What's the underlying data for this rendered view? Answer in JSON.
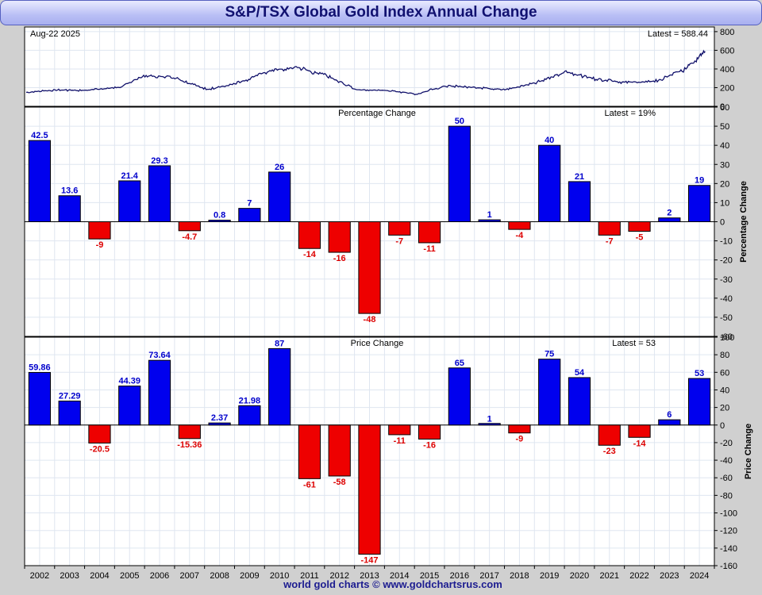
{
  "title": "S&P/TSX Global Gold Index Annual Change",
  "footer": "world gold charts © www.goldchartsrus.com",
  "colors": {
    "positive": "#0000ee",
    "negative": "#ee0000",
    "line": "#10106a",
    "label_pos": "#0000cc",
    "label_neg": "#dd0000"
  },
  "chart_data": [
    {
      "type": "line",
      "date_label": "Aug-22  2025",
      "latest_label": "Latest = 588.44",
      "ylim": [
        0,
        850
      ],
      "yticks": [
        0,
        200,
        400,
        600,
        800
      ],
      "x": [
        "2002",
        "2003",
        "2004",
        "2005",
        "2006",
        "2007",
        "2008",
        "2009",
        "2010",
        "2011",
        "2012",
        "2013",
        "2014",
        "2015",
        "2016",
        "2017",
        "2018",
        "2019",
        "2020",
        "2021",
        "2022",
        "2023",
        "2024",
        "2025-08"
      ],
      "values": [
        150,
        175,
        170,
        200,
        330,
        300,
        180,
        240,
        370,
        420,
        330,
        175,
        170,
        130,
        220,
        200,
        180,
        250,
        370,
        290,
        255,
        270,
        400,
        588
      ]
    },
    {
      "type": "bar",
      "title": "Percentage Change",
      "latest_label": "Latest = 19%",
      "ylabel": "Percentage Change",
      "ylim": [
        -60,
        60
      ],
      "yticks": [
        -60,
        -50,
        -40,
        -30,
        -20,
        -10,
        0,
        10,
        20,
        30,
        40,
        50,
        60
      ],
      "categories": [
        "2002",
        "2003",
        "2004",
        "2005",
        "2006",
        "2007",
        "2008",
        "2009",
        "2010",
        "2011",
        "2012",
        "2013",
        "2014",
        "2015",
        "2016",
        "2017",
        "2018",
        "2019",
        "2020",
        "2021",
        "2022",
        "2023",
        "2024"
      ],
      "values": [
        42.5,
        13.6,
        -9,
        21.4,
        29.3,
        -4.7,
        0.8,
        7,
        26,
        -14,
        -16,
        -48,
        -7,
        -11,
        50,
        1,
        -4,
        40,
        21,
        -7,
        -5,
        2,
        19
      ],
      "labels": [
        "42.5",
        "13.6",
        "-9",
        "21.4",
        "29.3",
        "-4.7",
        "0.8",
        "7",
        "26",
        "-14",
        "-16",
        "-48",
        "-7",
        "-11",
        "50",
        "1",
        "-4",
        "40",
        "21",
        "-7",
        "-5",
        "2",
        "19"
      ]
    },
    {
      "type": "bar",
      "title": "Price Change",
      "latest_label": "Latest = 53",
      "ylabel": "Price Change",
      "ylim": [
        -160,
        100
      ],
      "yticks": [
        -160,
        -140,
        -120,
        -100,
        -80,
        -60,
        -40,
        -20,
        0,
        20,
        40,
        60,
        80,
        100
      ],
      "categories": [
        "2002",
        "2003",
        "2004",
        "2005",
        "2006",
        "2007",
        "2008",
        "2009",
        "2010",
        "2011",
        "2012",
        "2013",
        "2014",
        "2015",
        "2016",
        "2017",
        "2018",
        "2019",
        "2020",
        "2021",
        "2022",
        "2023",
        "2024"
      ],
      "values": [
        59.86,
        27.29,
        -20.5,
        44.39,
        73.64,
        -15.36,
        2.37,
        21.98,
        87,
        -61,
        -58,
        -147,
        -11,
        -16,
        65,
        1,
        -9,
        75,
        54,
        -23,
        -14,
        6,
        53
      ],
      "labels": [
        "59.86",
        "27.29",
        "-20.5",
        "44.39",
        "73.64",
        "-15.36",
        "2.37",
        "21.98",
        "87",
        "-61",
        "-58",
        "-147",
        "-11",
        "-16",
        "65",
        "1",
        "-9",
        "75",
        "54",
        "-23",
        "-14",
        "6",
        "53"
      ]
    }
  ]
}
